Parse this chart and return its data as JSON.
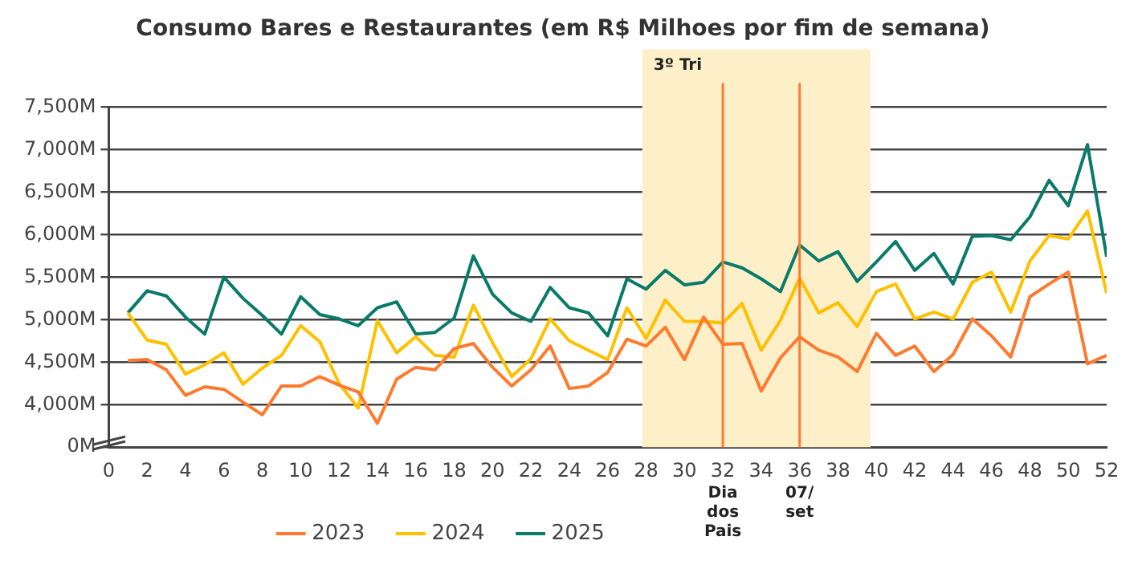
{
  "chart_data": {
    "type": "line",
    "title": "Consumo Bares e Restaurantes (em R$ Milhoes por fim de semana)",
    "x": [
      1,
      2,
      3,
      4,
      5,
      6,
      7,
      8,
      9,
      10,
      11,
      12,
      13,
      14,
      15,
      16,
      17,
      18,
      19,
      20,
      21,
      22,
      23,
      24,
      25,
      26,
      27,
      28,
      29,
      30,
      31,
      32,
      33,
      34,
      35,
      36,
      37,
      38,
      39,
      40,
      41,
      42,
      43,
      44,
      45,
      46,
      47,
      48,
      49,
      50,
      51,
      52
    ],
    "series": [
      {
        "name": "2023",
        "color": "#ff7a2f",
        "values": [
          4520,
          4530,
          4410,
          4110,
          4210,
          4180,
          4030,
          3880,
          4220,
          4220,
          4330,
          4230,
          4150,
          3780,
          4300,
          4440,
          4410,
          4660,
          4720,
          4440,
          4220,
          4410,
          4690,
          4190,
          4220,
          4380,
          4770,
          4690,
          4910,
          4530,
          5030,
          4710,
          4720,
          4160,
          4550,
          4800,
          4640,
          4560,
          4390,
          4840,
          4580,
          4690,
          4390,
          4590,
          5010,
          4810,
          4560,
          5270,
          5420,
          5560,
          4480,
          4580
        ]
      },
      {
        "name": "2024",
        "color": "#ffc000",
        "values": [
          5080,
          4760,
          4710,
          4360,
          4470,
          4610,
          4240,
          4430,
          4580,
          4930,
          4740,
          4250,
          3960,
          4990,
          4610,
          4800,
          4580,
          4560,
          5170,
          4730,
          4330,
          4540,
          5010,
          4750,
          4640,
          4530,
          5140,
          4780,
          5230,
          4980,
          4980,
          4960,
          5190,
          4640,
          4990,
          5490,
          5080,
          5200,
          4920,
          5330,
          5420,
          5010,
          5090,
          5010,
          5440,
          5560,
          5090,
          5690,
          5990,
          5950,
          6280,
          5310
        ]
      },
      {
        "name": "2025",
        "color": "#0a7a6a",
        "values": [
          5080,
          5340,
          5280,
          5030,
          4830,
          5500,
          5250,
          5050,
          4830,
          5270,
          5060,
          5010,
          4930,
          5140,
          5210,
          4830,
          4850,
          5020,
          5750,
          5300,
          5080,
          4980,
          5380,
          5140,
          5080,
          4810,
          5480,
          5360,
          5580,
          5410,
          5440,
          5680,
          5610,
          5480,
          5330,
          5880,
          5690,
          5800,
          5450,
          5680,
          5920,
          5580,
          5780,
          5420,
          5980,
          5990,
          5940,
          6210,
          6640,
          6340,
          7060,
          5740
        ]
      }
    ],
    "xlim": [
      0,
      52
    ],
    "xticks": [
      0,
      2,
      4,
      6,
      8,
      10,
      12,
      14,
      16,
      18,
      20,
      22,
      24,
      26,
      28,
      30,
      32,
      34,
      36,
      38,
      40,
      42,
      44,
      46,
      48,
      50,
      52
    ],
    "ylim": [
      3500,
      7500
    ],
    "yticks": [
      {
        "value": 3500,
        "label": "0M"
      },
      {
        "value": 4000,
        "label": "4,000M"
      },
      {
        "value": 4500,
        "label": "4,500M"
      },
      {
        "value": 5000,
        "label": "5,000M"
      },
      {
        "value": 5500,
        "label": "5,500M"
      },
      {
        "value": 6000,
        "label": "6,000M"
      },
      {
        "value": 6500,
        "label": "6,500M"
      },
      {
        "value": 7000,
        "label": "7,000M"
      },
      {
        "value": 7500,
        "label": "7,500M"
      }
    ],
    "grid": "y",
    "legend": "bottom",
    "marker": "none",
    "line_style": "solid",
    "ref_lines": [
      {
        "axis": "x",
        "value": 32,
        "label": "Dia dos Pais",
        "color": "#ff7a2f"
      },
      {
        "axis": "x",
        "value": 36,
        "label": "07/ set",
        "color": "#ff7a2f"
      }
    ],
    "bands": [
      {
        "axis": "x",
        "from": 27.8,
        "to": 39.7,
        "label": "3º Tri",
        "color": "#fdefc8"
      }
    ]
  }
}
